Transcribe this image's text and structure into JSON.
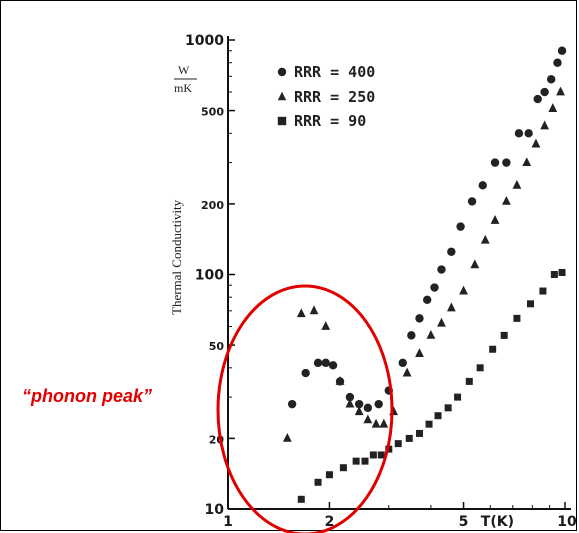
{
  "chart_data": {
    "type": "scatter",
    "xscale": "log",
    "yscale": "log",
    "xlim": [
      1,
      10
    ],
    "ylim": [
      10,
      1000
    ],
    "xticks": [
      "1",
      "2",
      "5",
      "T(K)",
      "10"
    ],
    "yticks": [
      "1000",
      "500",
      "200",
      "100",
      "50",
      "20",
      "10"
    ],
    "ylabel": "Thermal Conductivity",
    "yunit_top": "W",
    "yunit_bottom": "mK",
    "grid": false,
    "legend_position": "top-left",
    "series": [
      {
        "name": "RRR = 400",
        "marker": "circle",
        "x": [
          1.55,
          1.7,
          1.85,
          1.95,
          2.05,
          2.15,
          2.3,
          2.45,
          2.6,
          2.8,
          3.0,
          3.3,
          3.5,
          3.7,
          3.9,
          4.1,
          4.3,
          4.6,
          4.9,
          5.3,
          5.7,
          6.2,
          6.7,
          7.3,
          7.8,
          8.3,
          8.7,
          9.1,
          9.5,
          9.8
        ],
        "y": [
          28,
          38,
          42,
          42,
          41,
          35,
          30,
          28,
          27,
          28,
          32,
          42,
          55,
          65,
          78,
          88,
          105,
          125,
          160,
          205,
          240,
          300,
          300,
          400,
          400,
          560,
          600,
          680,
          800,
          900
        ]
      },
      {
        "name": "RRR = 250",
        "marker": "triangle",
        "x": [
          1.5,
          1.65,
          1.8,
          1.95,
          2.15,
          2.3,
          2.45,
          2.6,
          2.75,
          2.9,
          3.1,
          3.4,
          3.7,
          4.0,
          4.3,
          4.6,
          5.0,
          5.4,
          5.8,
          6.2,
          6.7,
          7.2,
          7.7,
          8.2,
          8.7,
          9.2,
          9.7
        ],
        "y": [
          20,
          68,
          70,
          60,
          35,
          28,
          26,
          24,
          23,
          23,
          26,
          38,
          46,
          55,
          62,
          72,
          85,
          110,
          140,
          170,
          205,
          240,
          300,
          360,
          430,
          510,
          600
        ]
      },
      {
        "name": "RRR =  90",
        "marker": "square",
        "x": [
          1.65,
          1.85,
          2.0,
          2.2,
          2.4,
          2.55,
          2.7,
          2.85,
          3.0,
          3.2,
          3.45,
          3.7,
          3.95,
          4.2,
          4.5,
          4.8,
          5.2,
          5.6,
          6.1,
          6.6,
          7.2,
          7.9,
          8.6,
          9.3,
          9.8
        ],
        "y": [
          11,
          13,
          14,
          15,
          16,
          16,
          17,
          17,
          18,
          19,
          20,
          21,
          23,
          25,
          27,
          30,
          35,
          40,
          48,
          55,
          65,
          75,
          85,
          100,
          102
        ]
      }
    ],
    "annotations": [
      {
        "text": "“phonon peak”",
        "color": "#e00000"
      }
    ]
  }
}
